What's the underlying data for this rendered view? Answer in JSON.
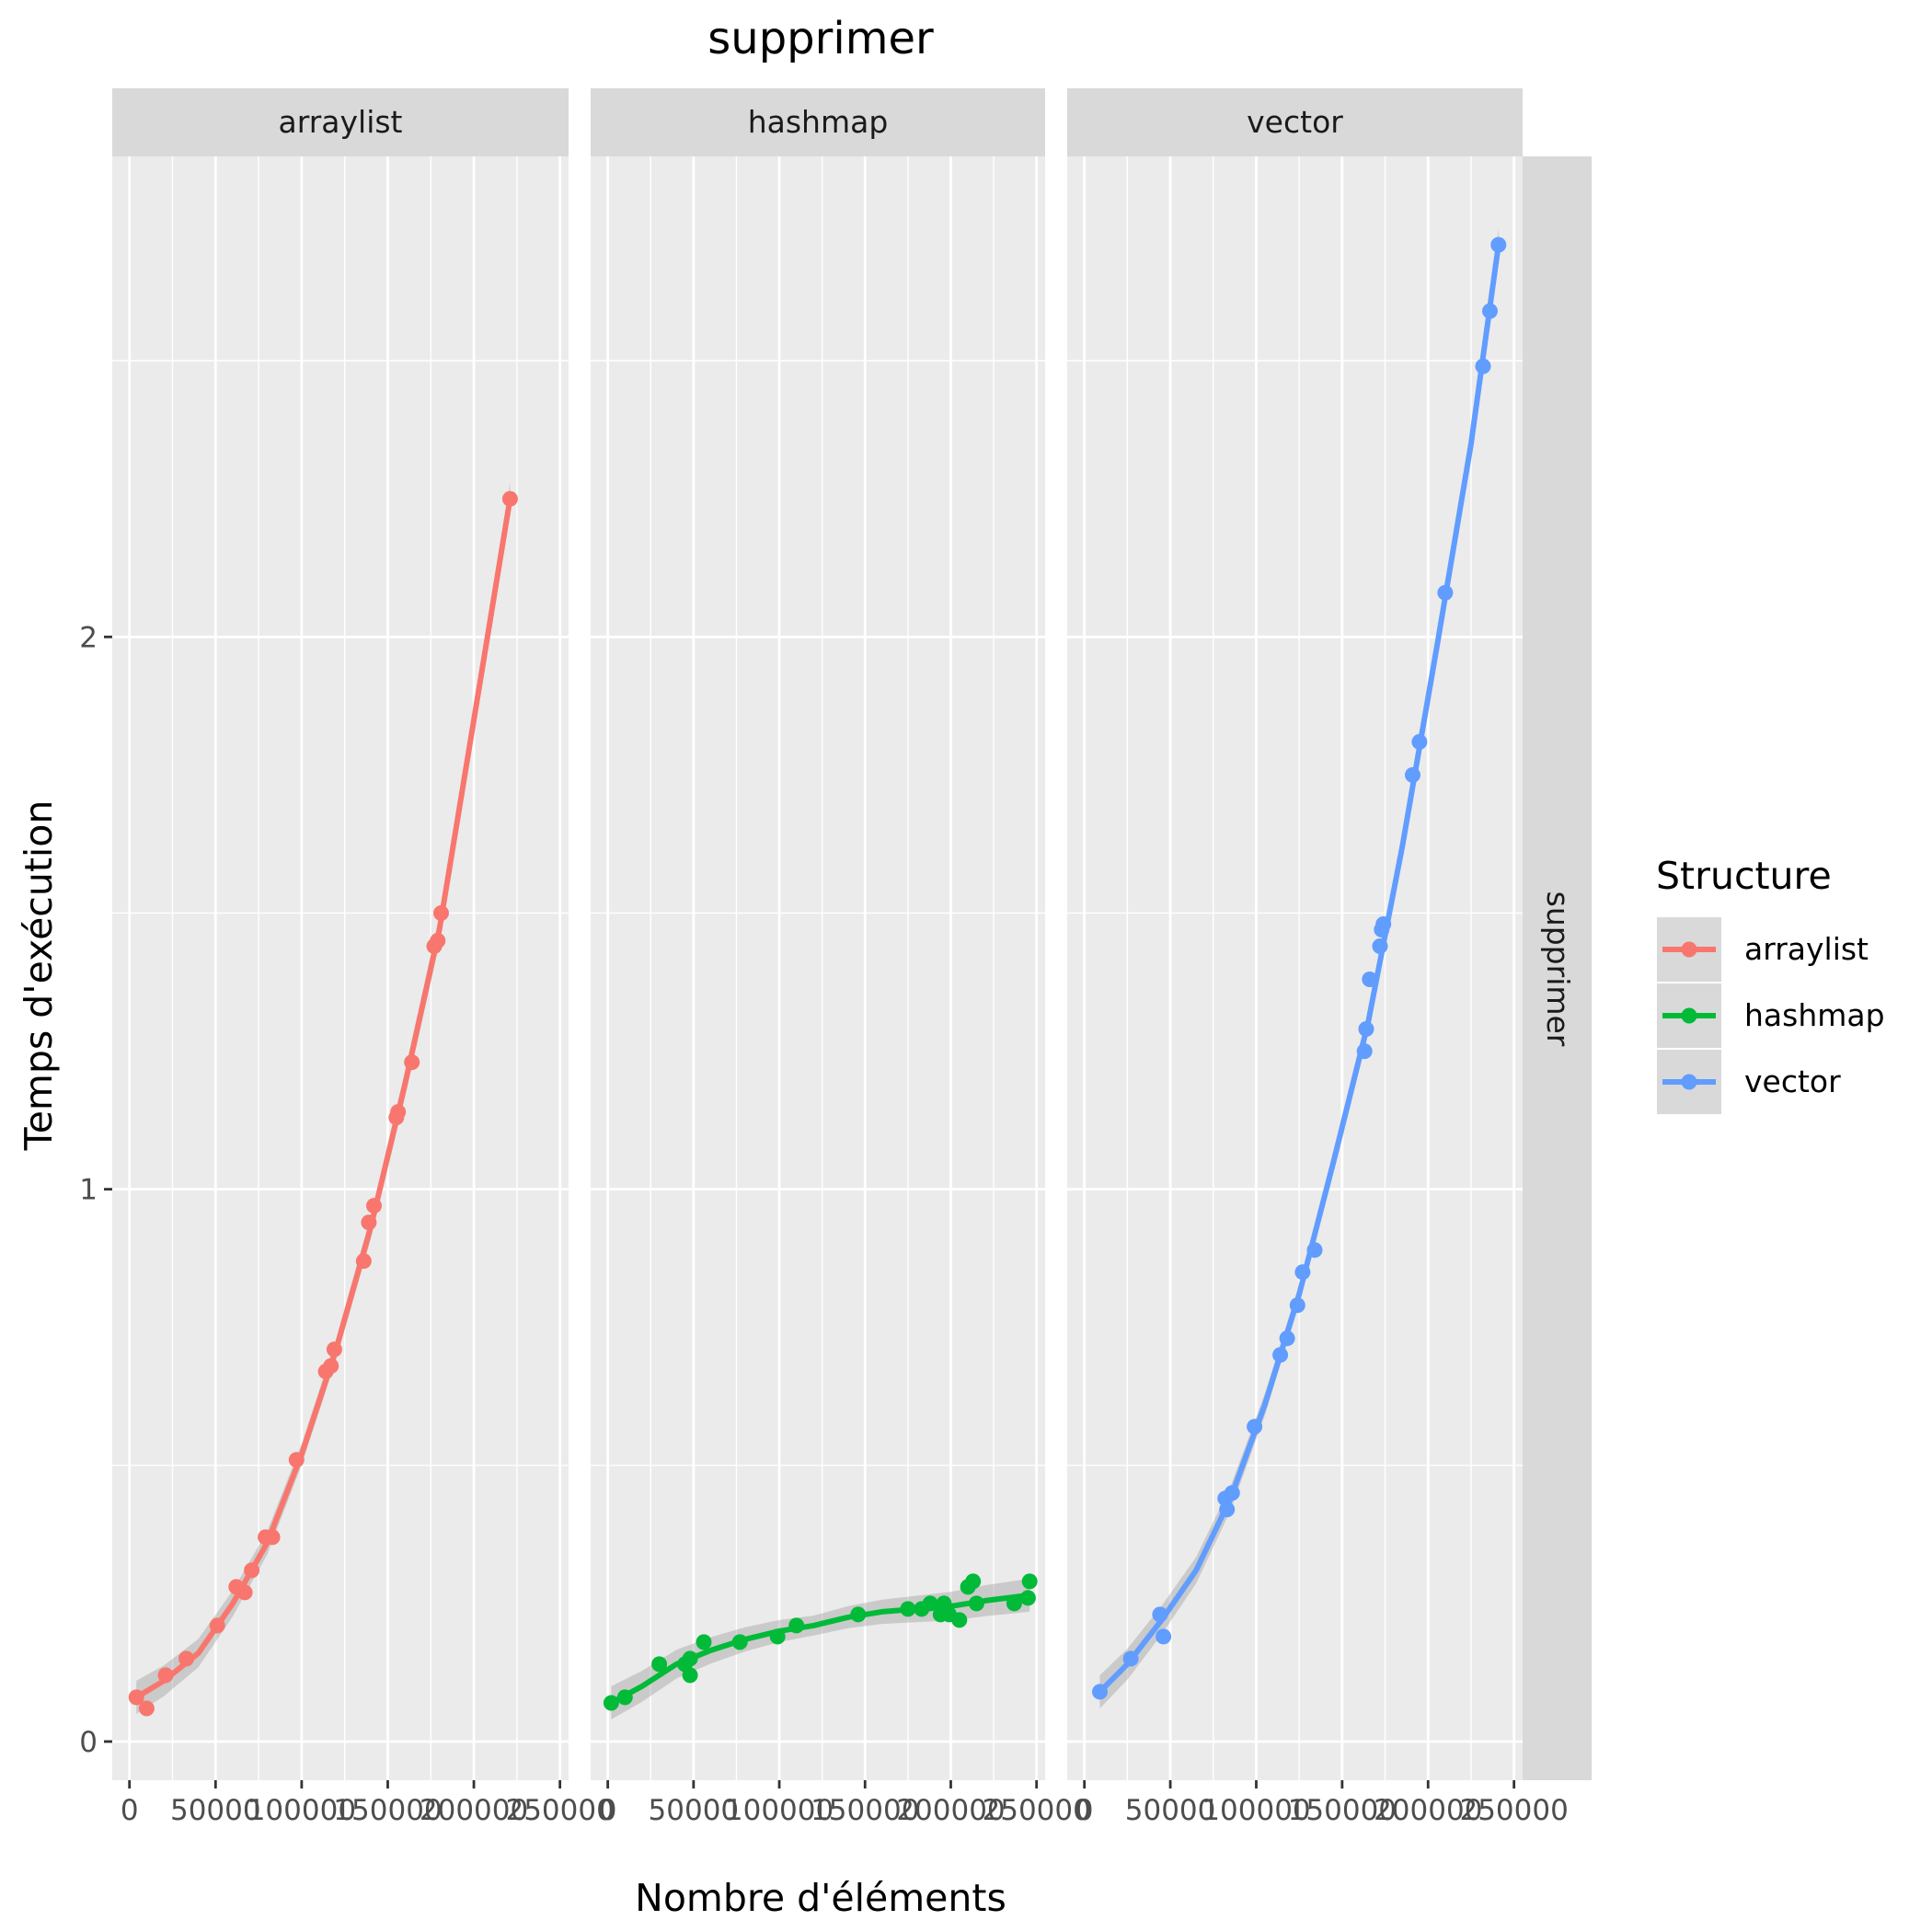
{
  "chart_data": {
    "type": "scatter",
    "title": "supprimer",
    "xlabel": "Nombre d'éléments",
    "ylabel": "Temps d'exécution",
    "xlim": [
      -10000,
      255000
    ],
    "ylim": [
      -0.07,
      2.87
    ],
    "x_ticks": [
      0,
      50000,
      100000,
      150000,
      200000,
      250000
    ],
    "x_tick_labels": [
      "0",
      "50000",
      "100000",
      "150000",
      "200000",
      "250000"
    ],
    "y_ticks": [
      0,
      1,
      2
    ],
    "y_tick_labels": [
      "0",
      "1",
      "2"
    ],
    "row_strip": "supprimer",
    "grid": true,
    "legend_position": "right",
    "legend_title": "Structure",
    "smoother": "loess with grey confidence band",
    "series": [
      {
        "name": "arraylist",
        "color": "#F8766D",
        "points": [
          [
            4000,
            0.08
          ],
          [
            10000,
            0.06
          ],
          [
            21000,
            0.12
          ],
          [
            33000,
            0.15
          ],
          [
            51000,
            0.21
          ],
          [
            62000,
            0.28
          ],
          [
            67000,
            0.27
          ],
          [
            71000,
            0.31
          ],
          [
            79000,
            0.37
          ],
          [
            83000,
            0.37
          ],
          [
            97000,
            0.51
          ],
          [
            114000,
            0.67
          ],
          [
            117000,
            0.68
          ],
          [
            119000,
            0.71
          ],
          [
            136000,
            0.87
          ],
          [
            139000,
            0.94
          ],
          [
            142000,
            0.97
          ],
          [
            155000,
            1.13
          ],
          [
            156000,
            1.14
          ],
          [
            164000,
            1.23
          ],
          [
            177000,
            1.44
          ],
          [
            179000,
            1.45
          ],
          [
            181000,
            1.5
          ],
          [
            221000,
            2.25
          ]
        ],
        "fit": [
          [
            4000,
            0.08
          ],
          [
            20000,
            0.11
          ],
          [
            40000,
            0.16
          ],
          [
            60000,
            0.25
          ],
          [
            80000,
            0.36
          ],
          [
            100000,
            0.52
          ],
          [
            120000,
            0.71
          ],
          [
            140000,
            0.93
          ],
          [
            160000,
            1.19
          ],
          [
            180000,
            1.47
          ],
          [
            200000,
            1.85
          ],
          [
            221000,
            2.25
          ]
        ]
      },
      {
        "name": "hashmap",
        "color": "#00BA38",
        "points": [
          [
            2000,
            0.07
          ],
          [
            10000,
            0.08
          ],
          [
            30000,
            0.14
          ],
          [
            45000,
            0.14
          ],
          [
            48000,
            0.12
          ],
          [
            48000,
            0.15
          ],
          [
            56000,
            0.18
          ],
          [
            77000,
            0.18
          ],
          [
            99000,
            0.19
          ],
          [
            110000,
            0.21
          ],
          [
            146000,
            0.23
          ],
          [
            175000,
            0.24
          ],
          [
            183000,
            0.24
          ],
          [
            188000,
            0.25
          ],
          [
            194000,
            0.23
          ],
          [
            196000,
            0.25
          ],
          [
            199000,
            0.23
          ],
          [
            205000,
            0.22
          ],
          [
            210000,
            0.28
          ],
          [
            213000,
            0.29
          ],
          [
            215000,
            0.25
          ],
          [
            237000,
            0.25
          ],
          [
            245000,
            0.26
          ],
          [
            246000,
            0.29
          ]
        ],
        "fit": [
          [
            2000,
            0.07
          ],
          [
            20000,
            0.1
          ],
          [
            40000,
            0.14
          ],
          [
            60000,
            0.165
          ],
          [
            80000,
            0.185
          ],
          [
            100000,
            0.2
          ],
          [
            120000,
            0.21
          ],
          [
            140000,
            0.225
          ],
          [
            160000,
            0.235
          ],
          [
            180000,
            0.24
          ],
          [
            200000,
            0.245
          ],
          [
            220000,
            0.255
          ],
          [
            246000,
            0.265
          ]
        ]
      },
      {
        "name": "vector",
        "color": "#619CFF",
        "points": [
          [
            9000,
            0.09
          ],
          [
            27000,
            0.15
          ],
          [
            44000,
            0.23
          ],
          [
            46000,
            0.19
          ],
          [
            82000,
            0.44
          ],
          [
            83000,
            0.42
          ],
          [
            86000,
            0.45
          ],
          [
            99000,
            0.57
          ],
          [
            114000,
            0.7
          ],
          [
            118000,
            0.73
          ],
          [
            124000,
            0.79
          ],
          [
            127000,
            0.85
          ],
          [
            134000,
            0.89
          ],
          [
            163000,
            1.25
          ],
          [
            164000,
            1.29
          ],
          [
            166000,
            1.38
          ],
          [
            172000,
            1.44
          ],
          [
            173000,
            1.47
          ],
          [
            174000,
            1.48
          ],
          [
            191000,
            1.75
          ],
          [
            195000,
            1.81
          ],
          [
            210000,
            2.08
          ],
          [
            232000,
            2.49
          ],
          [
            236000,
            2.59
          ],
          [
            241000,
            2.71
          ]
        ],
        "fit": [
          [
            9000,
            0.09
          ],
          [
            25000,
            0.14
          ],
          [
            45000,
            0.22
          ],
          [
            65000,
            0.31
          ],
          [
            85000,
            0.44
          ],
          [
            105000,
            0.61
          ],
          [
            125000,
            0.81
          ],
          [
            145000,
            1.05
          ],
          [
            165000,
            1.3
          ],
          [
            185000,
            1.62
          ],
          [
            205000,
            1.98
          ],
          [
            225000,
            2.35
          ],
          [
            241000,
            2.71
          ]
        ]
      }
    ]
  }
}
